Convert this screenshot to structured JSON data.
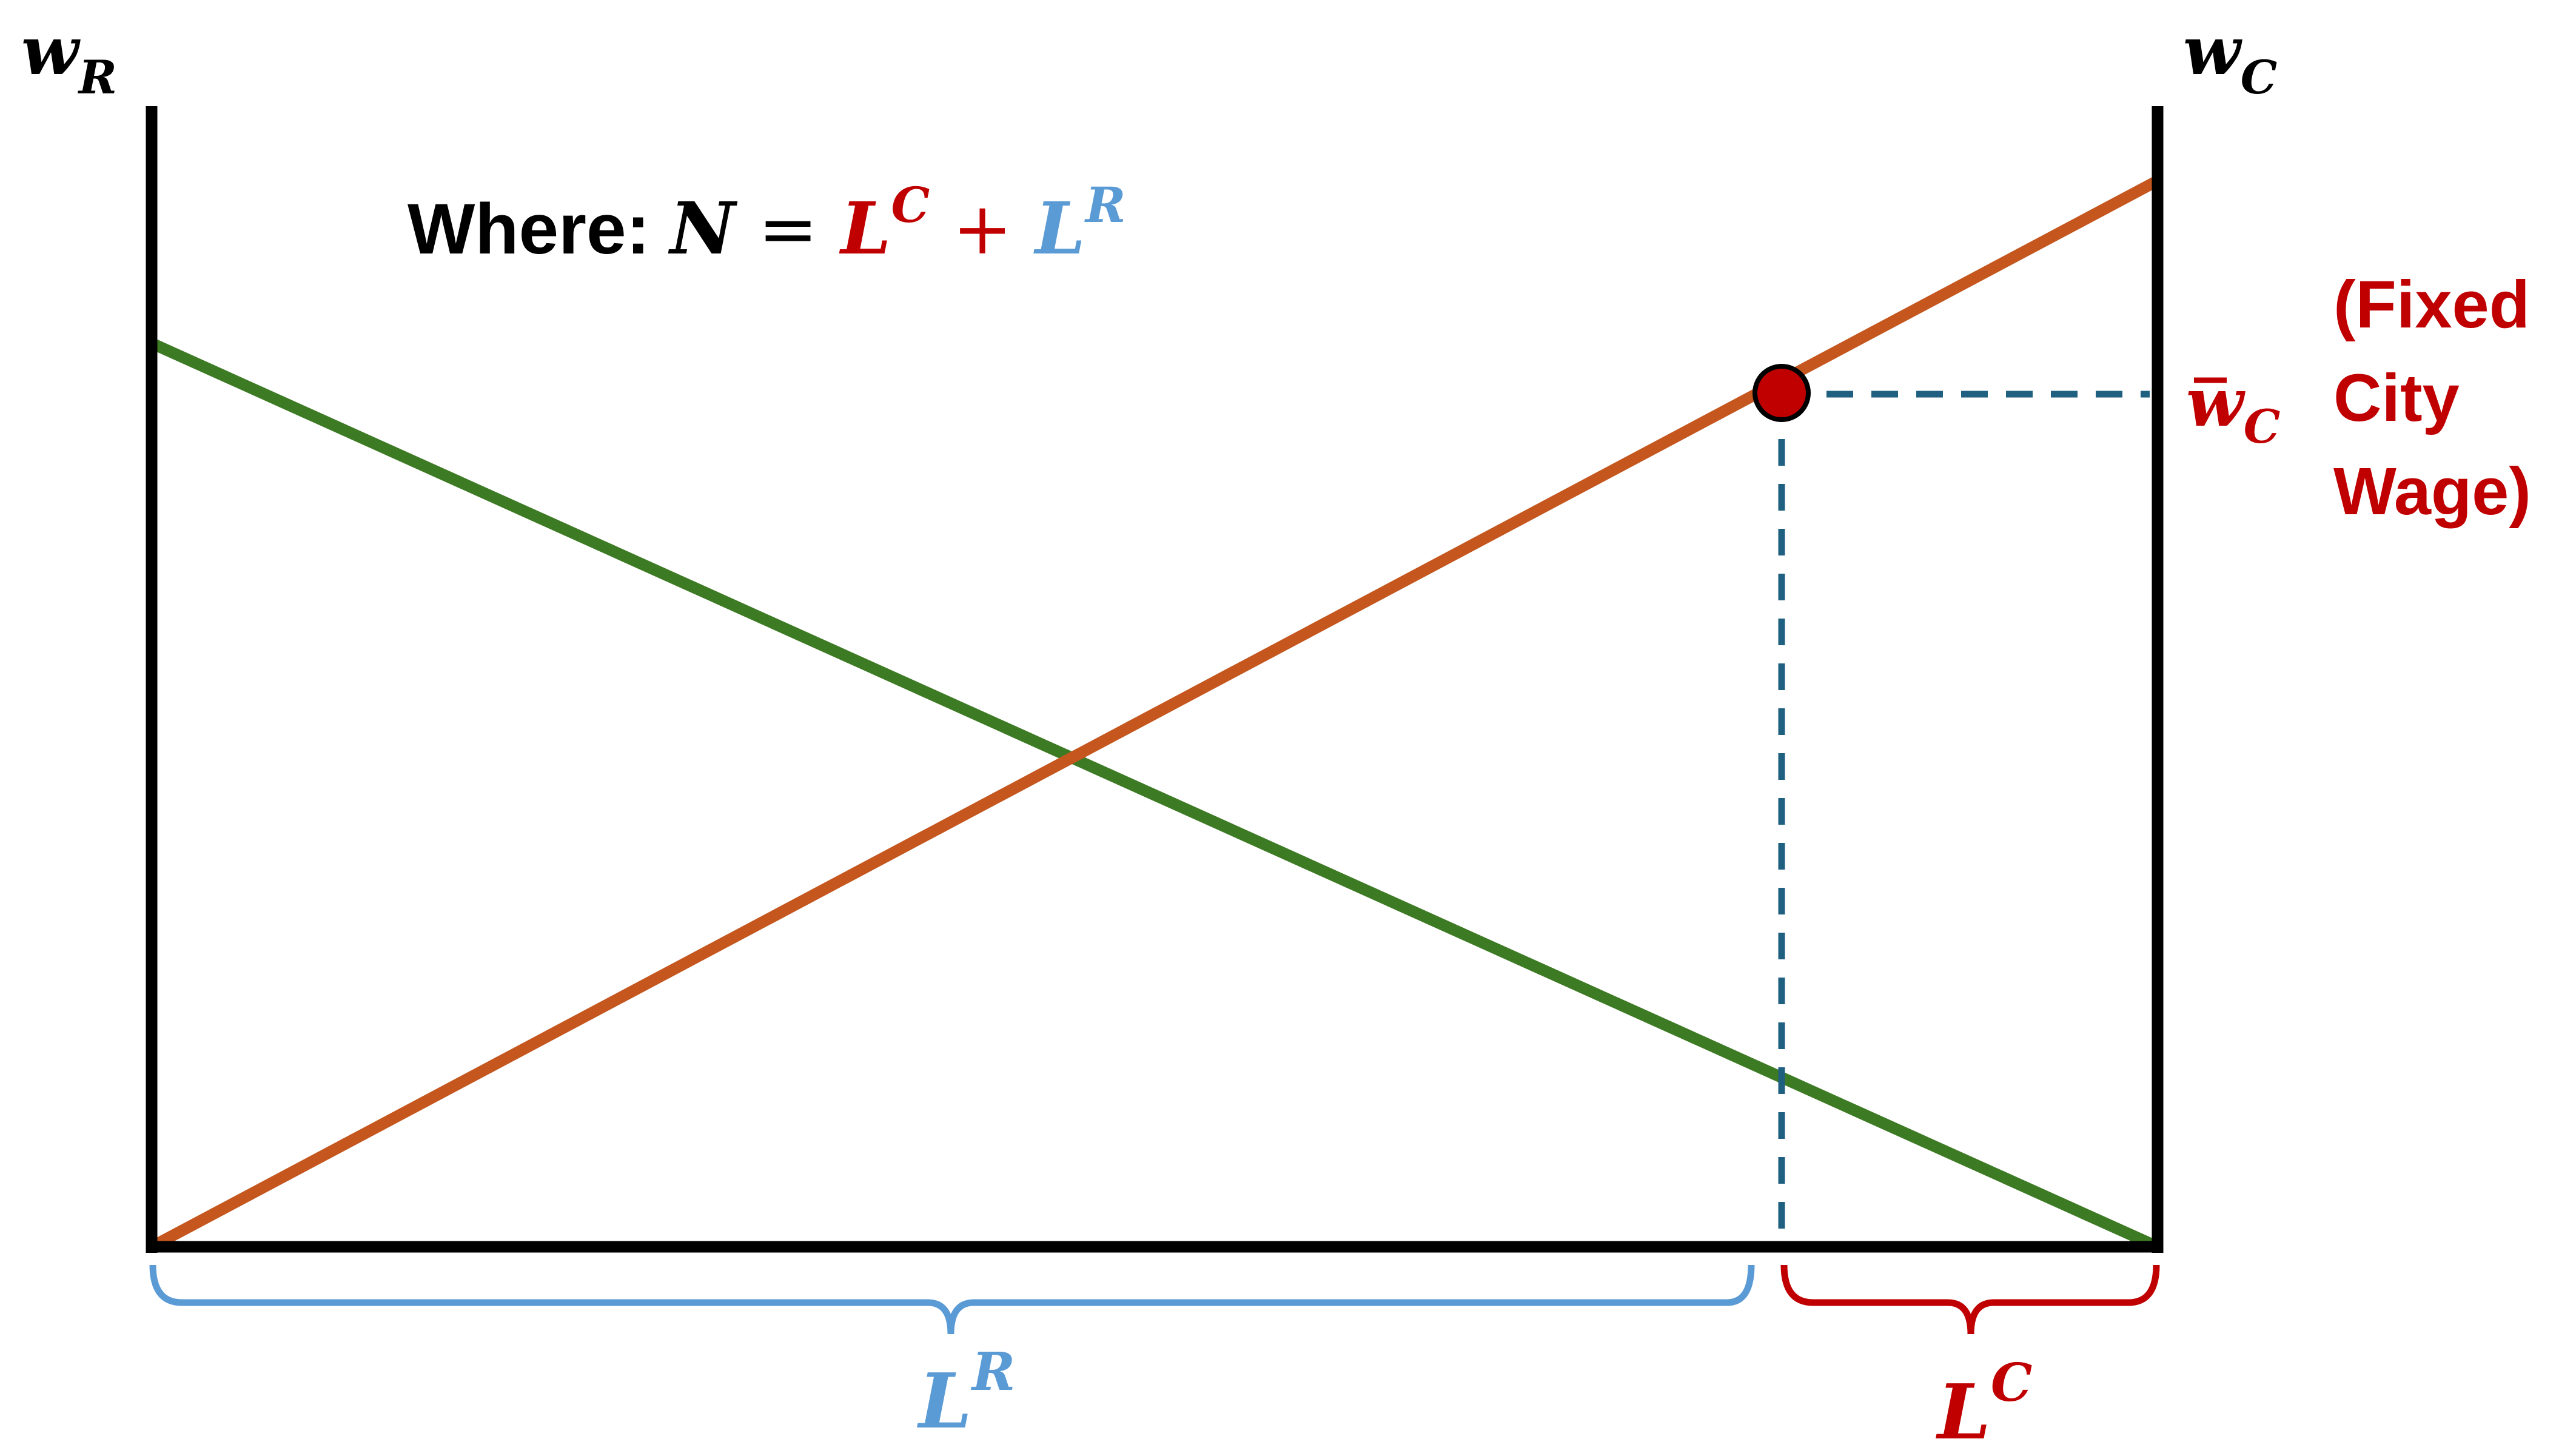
{
  "colors": {
    "axis": "#000000",
    "rural_line": "#3d7a24",
    "city_line": "#c4561e",
    "dashed": "#1f5f80",
    "point": "#c00000",
    "blue": "#5b9bd5",
    "red": "#c00000"
  },
  "labels": {
    "left_axis_main": "w",
    "left_axis_sub": "R",
    "right_axis_main": "w",
    "right_axis_sub": "C",
    "where_prefix": "Where: ",
    "eq_n": "N",
    "eq_equals": " = ",
    "eq_lc_main": "L",
    "eq_lc_sup": "C",
    "eq_plus": " + ",
    "eq_lr_main": "L",
    "eq_lr_sup": "R",
    "wbar_main": "w",
    "wbar_sub": "C",
    "fixed_line1": "(Fixed",
    "fixed_line2": "City",
    "fixed_line3": "Wage)",
    "lr_main": "L",
    "lr_sup": "R",
    "lc_main": "L",
    "lc_sup": "C"
  },
  "icons": {
    "equilibrium_point": "filled-circle-icon"
  }
}
